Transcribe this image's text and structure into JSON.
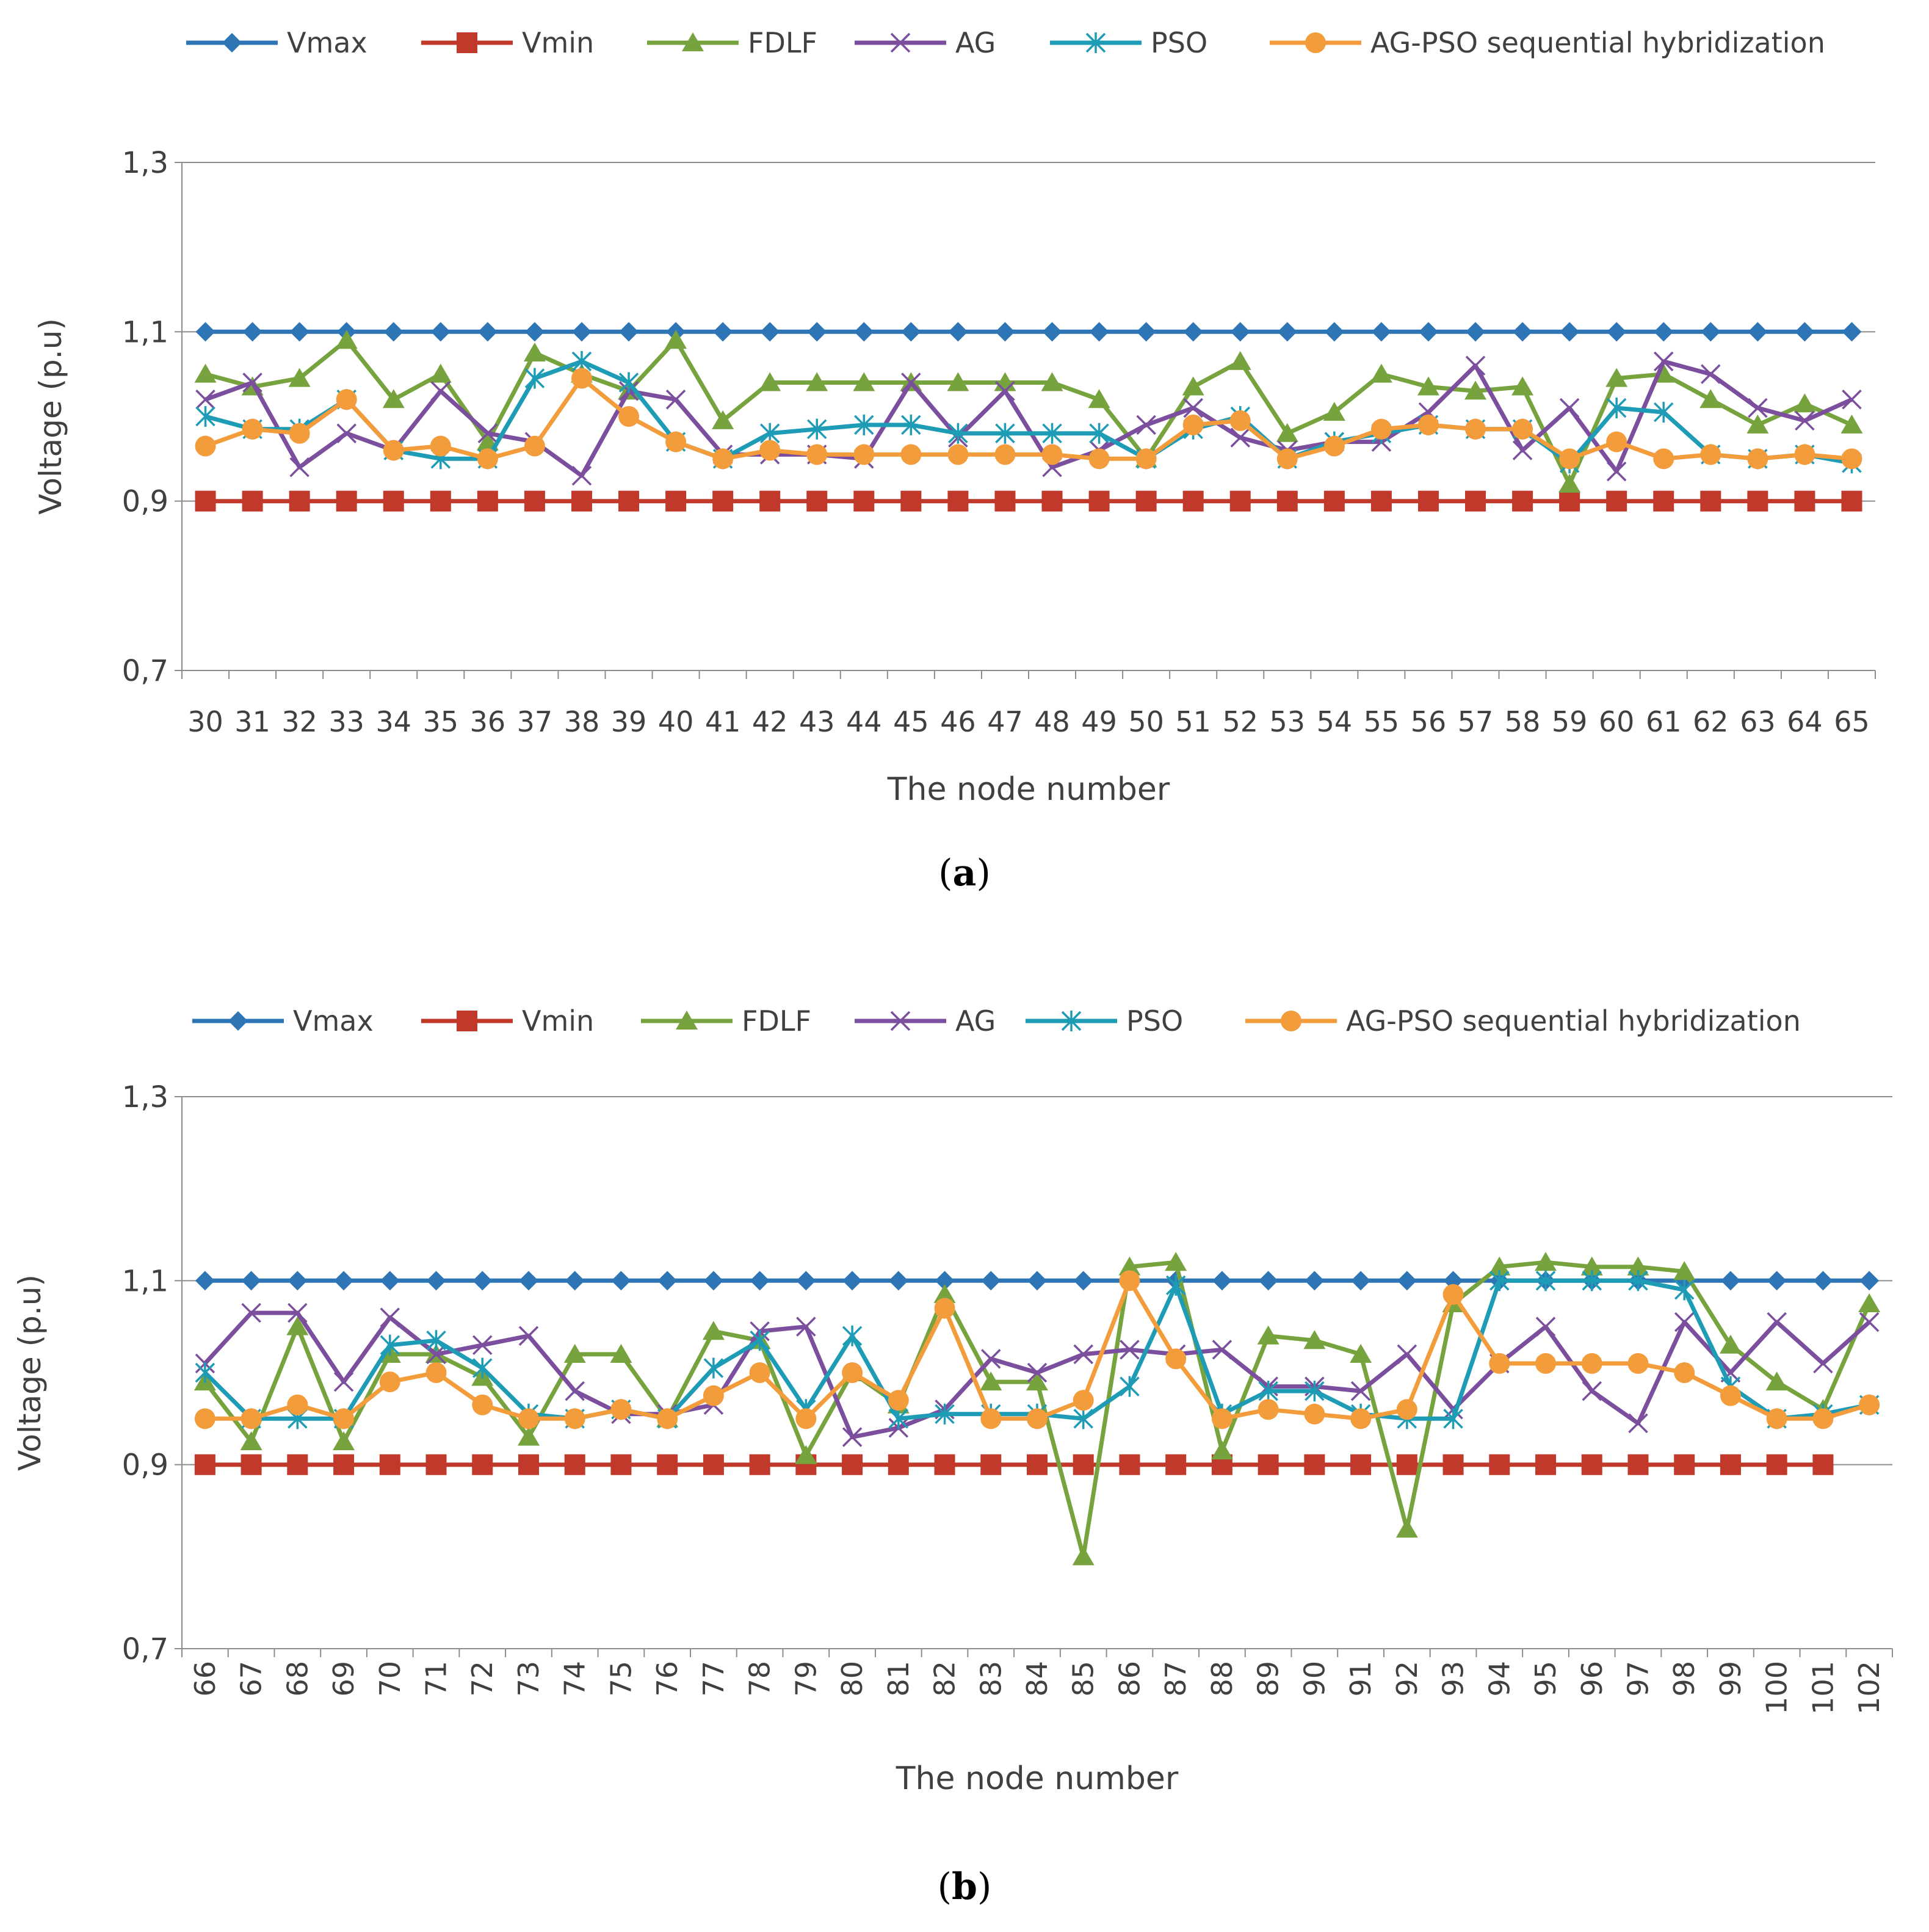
{
  "chart_data": [
    {
      "type": "line",
      "panel": "a",
      "caption_letter": "a",
      "xlabel": "The node number",
      "ylabel": "Voltage (p.u)",
      "ylim": [
        0.7,
        1.3
      ],
      "yticks": [
        0.7,
        0.9,
        1.1,
        1.3
      ],
      "ytick_labels": [
        "0,7",
        "0,9",
        "1,1",
        "1,3"
      ],
      "grid": "horizontal",
      "legend": "top",
      "categories": [
        "30",
        "31",
        "32",
        "33",
        "34",
        "35",
        "36",
        "37",
        "38",
        "39",
        "40",
        "41",
        "42",
        "43",
        "44",
        "45",
        "46",
        "47",
        "48",
        "49",
        "50",
        "51",
        "52",
        "53",
        "54",
        "55",
        "56",
        "57",
        "58",
        "59",
        "60",
        "61",
        "62",
        "63",
        "64",
        "65"
      ],
      "series": [
        {
          "name": "Vmax",
          "color": "#2e75b6",
          "marker": "diamond",
          "values": [
            1.1,
            1.1,
            1.1,
            1.1,
            1.1,
            1.1,
            1.1,
            1.1,
            1.1,
            1.1,
            1.1,
            1.1,
            1.1,
            1.1,
            1.1,
            1.1,
            1.1,
            1.1,
            1.1,
            1.1,
            1.1,
            1.1,
            1.1,
            1.1,
            1.1,
            1.1,
            1.1,
            1.1,
            1.1,
            1.1,
            1.1,
            1.1,
            1.1,
            1.1,
            1.1,
            1.1
          ]
        },
        {
          "name": "Vmin",
          "color": "#c0392b",
          "marker": "square",
          "values": [
            0.9,
            0.9,
            0.9,
            0.9,
            0.9,
            0.9,
            0.9,
            0.9,
            0.9,
            0.9,
            0.9,
            0.9,
            0.9,
            0.9,
            0.9,
            0.9,
            0.9,
            0.9,
            0.9,
            0.9,
            0.9,
            0.9,
            0.9,
            0.9,
            0.9,
            0.9,
            0.9,
            0.9,
            0.9,
            0.9,
            0.9,
            0.9,
            0.9,
            0.9,
            0.9,
            0.9
          ]
        },
        {
          "name": "FDLF",
          "color": "#77a33f",
          "marker": "triangle",
          "values": [
            1.05,
            1.035,
            1.045,
            1.09,
            1.02,
            1.05,
            0.97,
            1.075,
            1.05,
            1.03,
            1.09,
            0.995,
            1.04,
            1.04,
            1.04,
            1.04,
            1.04,
            1.04,
            1.04,
            1.02,
            0.95,
            1.035,
            1.065,
            0.98,
            1.005,
            1.05,
            1.035,
            1.03,
            1.035,
            0.92,
            1.045,
            1.05,
            1.02,
            0.99,
            1.015,
            0.99
          ]
        },
        {
          "name": "AG",
          "color": "#7b4f9d",
          "marker": "x",
          "values": [
            1.02,
            1.04,
            0.94,
            0.98,
            0.96,
            1.03,
            0.98,
            0.97,
            0.93,
            1.03,
            1.02,
            0.955,
            0.955,
            0.955,
            0.95,
            1.04,
            0.975,
            1.03,
            0.94,
            0.96,
            0.99,
            1.01,
            0.975,
            0.96,
            0.97,
            0.97,
            1.005,
            1.06,
            0.96,
            1.01,
            0.935,
            1.065,
            1.05,
            1.01,
            0.995,
            1.02
          ]
        },
        {
          "name": "PSO",
          "color": "#1e9bb5",
          "marker": "star",
          "values": [
            1.0,
            0.985,
            0.985,
            1.02,
            0.96,
            0.95,
            0.95,
            1.045,
            1.065,
            1.04,
            0.97,
            0.95,
            0.98,
            0.985,
            0.99,
            0.99,
            0.98,
            0.98,
            0.98,
            0.98,
            0.95,
            0.985,
            1.0,
            0.95,
            0.97,
            0.98,
            0.99,
            0.985,
            0.985,
            0.945,
            1.01,
            1.005,
            0.955,
            0.95,
            0.955,
            0.945
          ]
        },
        {
          "name": "AG-PSO sequential hybridization",
          "color": "#f39c3c",
          "marker": "circle",
          "values": [
            0.965,
            0.985,
            0.98,
            1.02,
            0.96,
            0.965,
            0.95,
            0.965,
            1.045,
            1.0,
            0.97,
            0.95,
            0.96,
            0.955,
            0.955,
            0.955,
            0.955,
            0.955,
            0.955,
            0.95,
            0.95,
            0.99,
            0.995,
            0.95,
            0.965,
            0.985,
            0.99,
            0.985,
            0.985,
            0.95,
            0.97,
            0.95,
            0.955,
            0.95,
            0.955,
            0.95
          ]
        }
      ]
    },
    {
      "type": "line",
      "panel": "b",
      "caption_letter": "b",
      "xlabel": "The node number",
      "ylabel": "Voltage (p.u)",
      "ylim": [
        0.7,
        1.3
      ],
      "yticks": [
        0.7,
        0.9,
        1.1,
        1.3
      ],
      "ytick_labels": [
        "0,7",
        "0,9",
        "1,1",
        "1,3"
      ],
      "grid": "horizontal",
      "legend": "top",
      "categories": [
        "66",
        "67",
        "68",
        "69",
        "70",
        "71",
        "72",
        "73",
        "74",
        "75",
        "76",
        "77",
        "78",
        "79",
        "80",
        "81",
        "82",
        "83",
        "84",
        "85",
        "86",
        "87",
        "88",
        "89",
        "90",
        "91",
        "92",
        "93",
        "94",
        "95",
        "96",
        "97",
        "98",
        "99",
        "100",
        "101",
        "102"
      ],
      "series": [
        {
          "name": "Vmax",
          "color": "#2e75b6",
          "marker": "diamond",
          "values": [
            1.1,
            1.1,
            1.1,
            1.1,
            1.1,
            1.1,
            1.1,
            1.1,
            1.1,
            1.1,
            1.1,
            1.1,
            1.1,
            1.1,
            1.1,
            1.1,
            1.1,
            1.1,
            1.1,
            1.1,
            1.1,
            1.1,
            1.1,
            1.1,
            1.1,
            1.1,
            1.1,
            1.1,
            1.1,
            1.1,
            1.1,
            1.1,
            1.1,
            1.1,
            1.1,
            1.1,
            1.1
          ]
        },
        {
          "name": "Vmin",
          "color": "#c0392b",
          "marker": "square",
          "values": [
            0.9,
            0.9,
            0.9,
            0.9,
            0.9,
            0.9,
            0.9,
            0.9,
            0.9,
            0.9,
            0.9,
            0.9,
            0.9,
            0.9,
            0.9,
            0.9,
            0.9,
            0.9,
            0.9,
            0.9,
            0.9,
            0.9,
            0.9,
            0.9,
            0.9,
            0.9,
            0.9,
            0.9,
            0.9,
            0.9,
            0.9,
            0.9,
            0.9,
            0.9,
            0.9,
            0.9,
            null
          ]
        },
        {
          "name": "FDLF",
          "color": "#77a33f",
          "marker": "triangle",
          "values": [
            0.99,
            0.925,
            1.05,
            0.925,
            1.02,
            1.02,
            0.995,
            0.93,
            1.02,
            1.02,
            0.95,
            1.045,
            1.035,
            0.91,
            1.0,
            0.965,
            1.085,
            0.99,
            0.99,
            0.8,
            1.115,
            1.12,
            0.915,
            1.04,
            1.035,
            1.02,
            0.83,
            1.075,
            1.115,
            1.12,
            1.115,
            1.115,
            1.11,
            1.03,
            0.99,
            0.96,
            1.075
          ]
        },
        {
          "name": "AG",
          "color": "#7b4f9d",
          "marker": "x",
          "values": [
            1.01,
            1.065,
            1.065,
            0.99,
            1.06,
            1.02,
            1.03,
            1.04,
            0.98,
            0.955,
            0.955,
            0.965,
            1.045,
            1.05,
            0.93,
            0.94,
            0.96,
            1.015,
            1.0,
            1.02,
            1.025,
            1.02,
            1.025,
            0.985,
            0.985,
            0.98,
            1.02,
            0.96,
            1.01,
            1.05,
            0.98,
            0.945,
            1.055,
            1.0,
            1.055,
            1.01,
            1.055
          ]
        },
        {
          "name": "PSO",
          "color": "#1e9bb5",
          "marker": "star",
          "values": [
            1.0,
            0.95,
            0.95,
            0.95,
            1.03,
            1.035,
            1.005,
            0.955,
            0.95,
            0.96,
            0.95,
            1.005,
            1.035,
            0.96,
            1.04,
            0.95,
            0.955,
            0.955,
            0.955,
            0.95,
            0.985,
            1.095,
            0.955,
            0.98,
            0.98,
            0.955,
            0.95,
            0.95,
            1.1,
            1.1,
            1.1,
            1.1,
            1.09,
            0.985,
            0.95,
            0.955,
            0.965
          ]
        },
        {
          "name": "AG-PSO sequential hybridization",
          "color": "#f39c3c",
          "marker": "circle",
          "values": [
            0.95,
            0.95,
            0.965,
            0.95,
            0.99,
            1.0,
            0.965,
            0.95,
            0.95,
            0.96,
            0.95,
            0.975,
            1.0,
            0.95,
            1.0,
            0.97,
            1.07,
            0.95,
            0.95,
            0.97,
            1.1,
            1.015,
            0.95,
            0.96,
            0.955,
            0.95,
            0.96,
            1.085,
            1.01,
            1.01,
            1.01,
            1.01,
            1.0,
            0.975,
            0.95,
            0.95,
            0.965
          ]
        }
      ]
    }
  ]
}
